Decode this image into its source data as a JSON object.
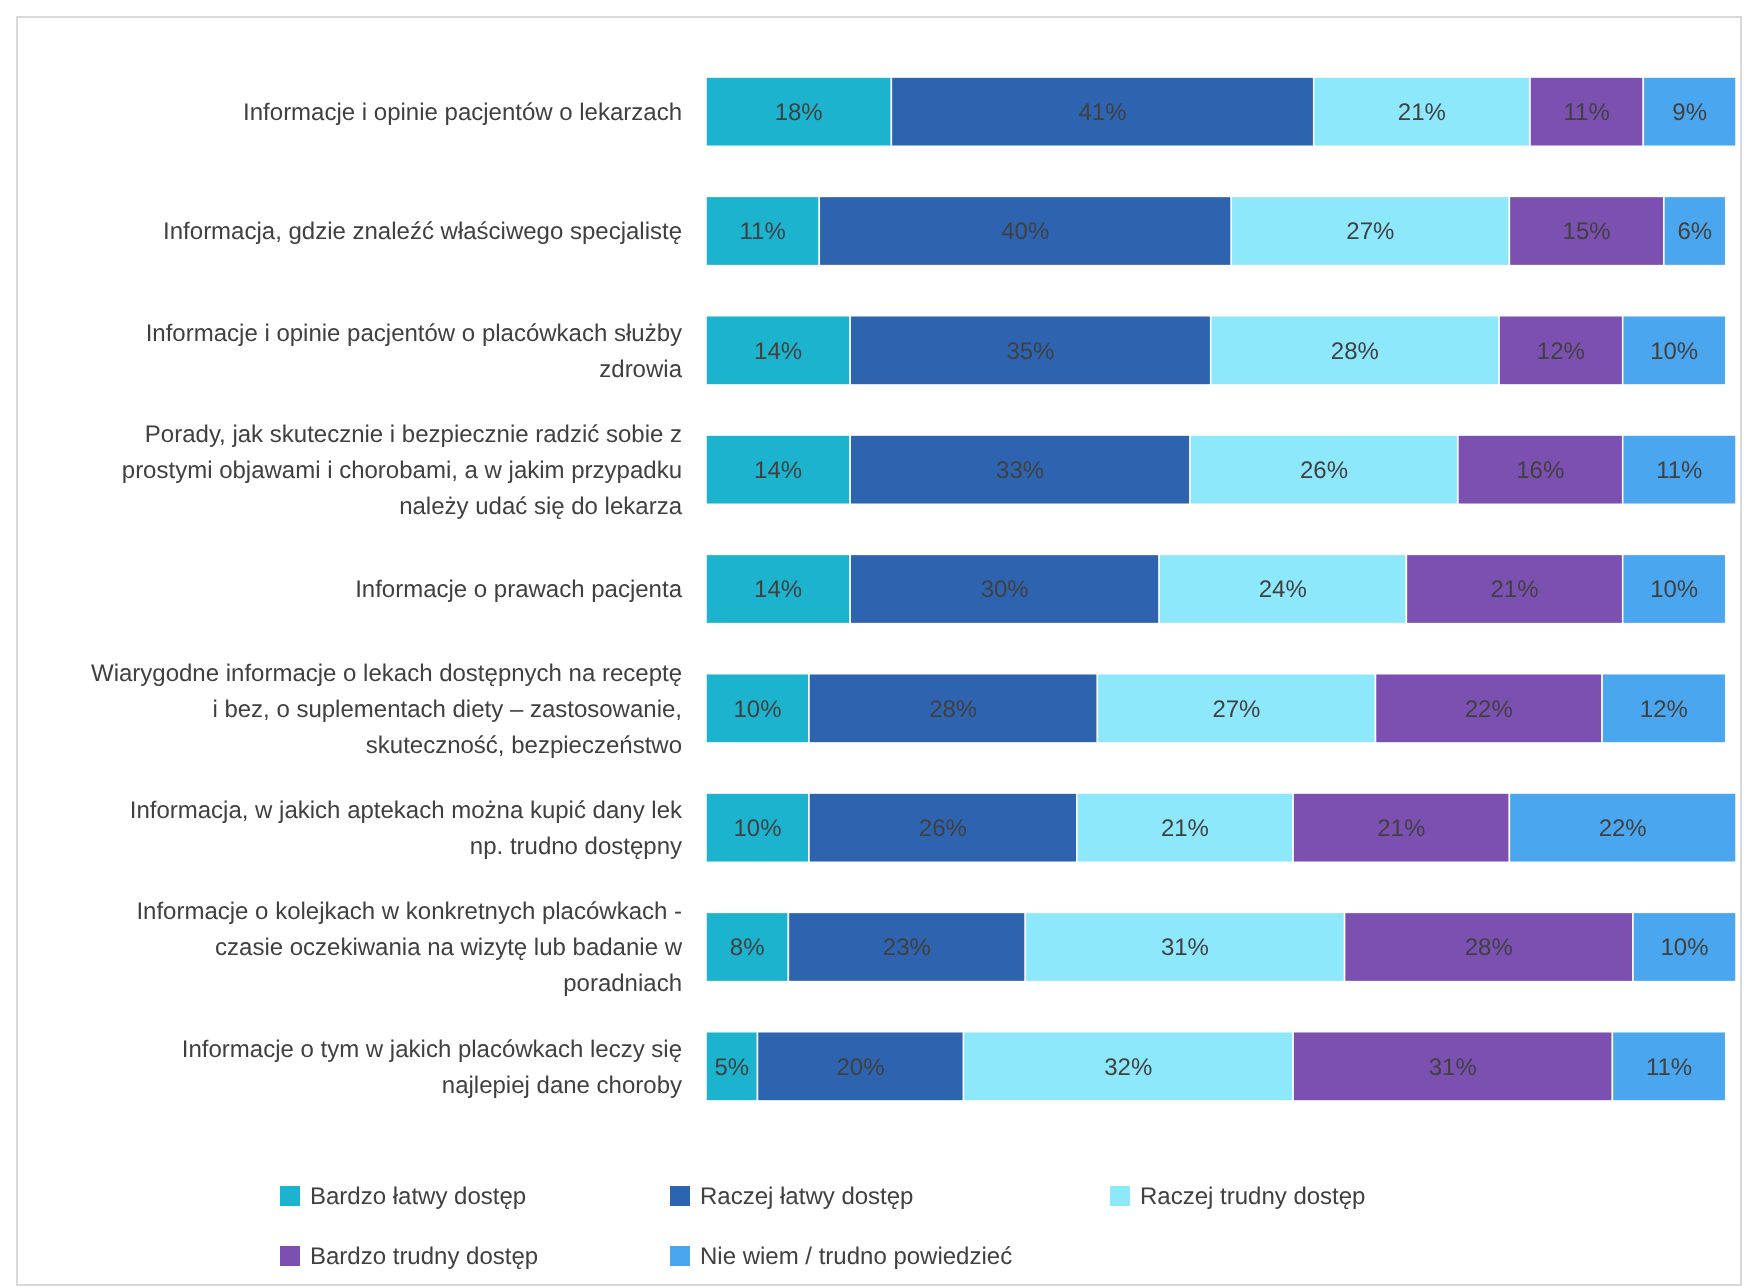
{
  "chart_data": {
    "type": "bar",
    "orientation": "horizontal",
    "stacked": true,
    "legend": "bottom",
    "categories": [
      "Informacje i opinie pacjentów o lekarzach",
      "Informacja, gdzie znaleźć właściwego specjalistę",
      "Informacje i opinie pacjentów o placówkach służby zdrowia",
      "Porady, jak skutecznie i bezpiecznie radzić sobie z prostymi objawami i chorobami, a w jakim przypadku należy udać się do lekarza",
      "Informacje o prawach pacjenta",
      "Wiarygodne informacje o lekach dostępnych na receptę i bez, o suplementach diety – zastosowanie, skuteczność, bezpieczeństwo",
      "Informacja, w jakich aptekach można kupić dany lek np. trudno dostępny",
      "Informacje o kolejkach w konkretnych placówkach - czasie oczekiwania na wizytę lub badanie w poradniach",
      "Informacje o tym w jakich placówkach leczy się najlepiej dane choroby"
    ],
    "series": [
      {
        "name": "Bardzo łatwy dostęp",
        "color": "#1cb3cf",
        "values": [
          18,
          11,
          14,
          14,
          14,
          10,
          10,
          8,
          5
        ],
        "value_labels": [
          "18%",
          "11%",
          "14%",
          "14%",
          "14%",
          "10%",
          "10%",
          "8%",
          "5%"
        ]
      },
      {
        "name": "Raczej łatwy dostęp",
        "color": "#2e63b0",
        "values": [
          41,
          40,
          35,
          33,
          30,
          28,
          26,
          23,
          20
        ],
        "value_labels": [
          "41%",
          "40%",
          "35%",
          "33%",
          "30%",
          "28%",
          "26%",
          "23%",
          "20%"
        ]
      },
      {
        "name": "Raczej trudny dostęp",
        "color": "#8ee8fb",
        "values": [
          21,
          27,
          28,
          26,
          24,
          27,
          21,
          31,
          32
        ],
        "value_labels": [
          "21%",
          "27%",
          "28%",
          "26%",
          "24%",
          "27%",
          "21%",
          "31%",
          "32%"
        ]
      },
      {
        "name": "Bardzo trudny dostęp",
        "color": "#7b50b0",
        "values": [
          11,
          15,
          12,
          16,
          21,
          22,
          21,
          28,
          31
        ],
        "value_labels": [
          "11%",
          "15%",
          "12%",
          "16%",
          "21%",
          "22%",
          "21%",
          "28%",
          "31%"
        ]
      },
      {
        "name": "Nie wiem / trudno powiedzieć",
        "color": "#4aa6ee",
        "values": [
          9,
          6,
          10,
          11,
          10,
          12,
          22,
          10,
          11
        ],
        "value_labels": [
          "9%",
          "6%",
          "10%",
          "11%",
          "10%",
          "12%",
          "22%",
          "10%",
          "11%"
        ]
      }
    ]
  }
}
